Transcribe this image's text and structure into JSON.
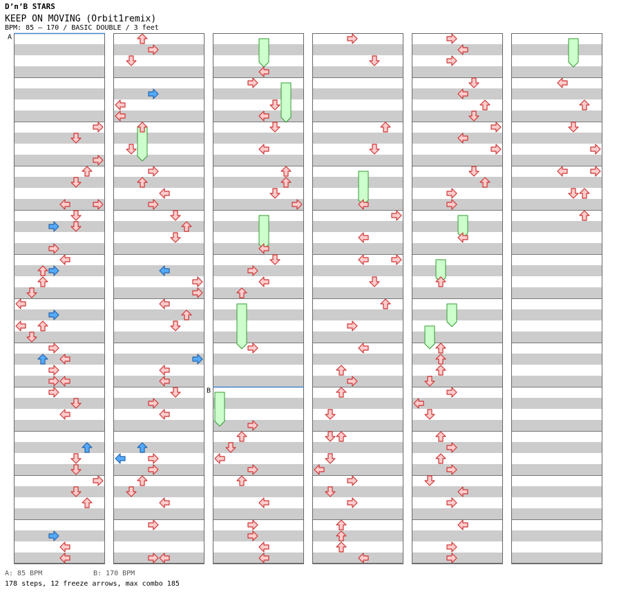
{
  "header": {
    "site": "D’n’B STARS",
    "title": "KEEP ON MOVING (Orbit1remix)",
    "meta": "BPM: 85 – 170 / BASIC DOUBLE / 3 feet"
  },
  "markers": [
    {
      "label": "A",
      "measure": 0
    },
    {
      "label": "B",
      "measure": 32
    }
  ],
  "footer": {
    "bpm_a": "A: 85 BPM",
    "bpm_b": "B: 170 BPM",
    "summary": "178 steps, 12 freeze arrows, max combo 185"
  },
  "colors": {
    "stripe": "#cccccc",
    "marker_line": "#4682c8",
    "arrow_red_fill": "#ffcccc",
    "arrow_red_stroke": "#cc3333",
    "arrow_blue_fill": "#55aaff",
    "arrow_blue_stroke": "#2266aa",
    "freeze_fill": "#ccffcc",
    "freeze_stroke": "#339933"
  },
  "chart_data": {
    "type": "stepchart",
    "columns": 6,
    "measures_per_column": 12,
    "rows_per_measure": 4,
    "lanes": [
      "left-1",
      "down-1",
      "up-1",
      "right-1",
      "left-2",
      "down-2",
      "up-2",
      "right-2"
    ],
    "freezes": [
      {
        "col": 2,
        "lane": 4,
        "start": 0,
        "end": 2
      },
      {
        "col": 5,
        "lane": 5,
        "start": 0,
        "end": 2
      },
      {
        "col": 2,
        "lane": 6,
        "start": 4,
        "end": 7
      },
      {
        "col": 1,
        "lane": 2,
        "start": 8,
        "end": 10.5
      },
      {
        "col": 3,
        "lane": 4,
        "start": 12,
        "end": 14.5
      },
      {
        "col": 2,
        "lane": 4,
        "start": 16,
        "end": 18.5
      },
      {
        "col": 4,
        "lane": 4,
        "start": 16,
        "end": 17.5
      },
      {
        "col": 4,
        "lane": 2,
        "start": 20,
        "end": 21.5
      },
      {
        "col": 4,
        "lane": 3,
        "start": 24,
        "end": 25.5
      },
      {
        "col": 2,
        "lane": 2,
        "start": 24,
        "end": 27.5
      },
      {
        "col": 4,
        "lane": 1,
        "start": 26,
        "end": 27.5
      },
      {
        "col": 2,
        "lane": 0,
        "start": 32,
        "end": 34.5
      }
    ],
    "arrows": [
      {
        "col": 0,
        "lane": 7,
        "row": 8
      },
      {
        "col": 0,
        "lane": 5,
        "row": 9
      },
      {
        "col": 0,
        "lane": 7,
        "row": 11
      },
      {
        "col": 0,
        "lane": 6,
        "row": 12
      },
      {
        "col": 0,
        "lane": 5,
        "row": 13
      },
      {
        "col": 0,
        "lane": 4,
        "row": 15
      },
      {
        "col": 0,
        "lane": 7,
        "row": 15
      },
      {
        "col": 0,
        "lane": 5,
        "row": 16
      },
      {
        "col": 0,
        "lane": 3,
        "row": 17,
        "blue": true
      },
      {
        "col": 0,
        "lane": 5,
        "row": 17
      },
      {
        "col": 0,
        "lane": 3,
        "row": 19
      },
      {
        "col": 0,
        "lane": 4,
        "row": 20
      },
      {
        "col": 0,
        "lane": 2,
        "row": 21
      },
      {
        "col": 0,
        "lane": 3,
        "row": 21,
        "blue": true
      },
      {
        "col": 0,
        "lane": 2,
        "row": 22
      },
      {
        "col": 0,
        "lane": 1,
        "row": 23
      },
      {
        "col": 0,
        "lane": 0,
        "row": 24
      },
      {
        "col": 0,
        "lane": 3,
        "row": 25,
        "blue": true
      },
      {
        "col": 0,
        "lane": 0,
        "row": 26
      },
      {
        "col": 0,
        "lane": 2,
        "row": 26
      },
      {
        "col": 0,
        "lane": 1,
        "row": 27
      },
      {
        "col": 0,
        "lane": 3,
        "row": 28
      },
      {
        "col": 0,
        "lane": 2,
        "row": 29,
        "blue": true
      },
      {
        "col": 0,
        "lane": 4,
        "row": 29
      },
      {
        "col": 0,
        "lane": 3,
        "row": 30
      },
      {
        "col": 0,
        "lane": 3,
        "row": 31
      },
      {
        "col": 0,
        "lane": 4,
        "row": 31
      },
      {
        "col": 0,
        "lane": 3,
        "row": 32
      },
      {
        "col": 0,
        "lane": 5,
        "row": 33
      },
      {
        "col": 0,
        "lane": 4,
        "row": 34
      },
      {
        "col": 0,
        "lane": 6,
        "row": 37,
        "blue": true
      },
      {
        "col": 0,
        "lane": 5,
        "row": 38
      },
      {
        "col": 0,
        "lane": 5,
        "row": 39
      },
      {
        "col": 0,
        "lane": 7,
        "row": 40
      },
      {
        "col": 0,
        "lane": 5,
        "row": 41
      },
      {
        "col": 0,
        "lane": 6,
        "row": 42
      },
      {
        "col": 0,
        "lane": 3,
        "row": 45,
        "blue": true
      },
      {
        "col": 0,
        "lane": 4,
        "row": 46
      },
      {
        "col": 0,
        "lane": 4,
        "row": 47
      },
      {
        "col": 1,
        "lane": 2,
        "row": 0
      },
      {
        "col": 1,
        "lane": 3,
        "row": 1
      },
      {
        "col": 1,
        "lane": 1,
        "row": 2
      },
      {
        "col": 1,
        "lane": 3,
        "row": 5,
        "blue": true
      },
      {
        "col": 1,
        "lane": 0,
        "row": 6
      },
      {
        "col": 1,
        "lane": 0,
        "row": 7
      },
      {
        "col": 1,
        "lane": 2,
        "row": 8
      },
      {
        "col": 1,
        "lane": 1,
        "row": 10
      },
      {
        "col": 1,
        "lane": 3,
        "row": 12
      },
      {
        "col": 1,
        "lane": 2,
        "row": 13
      },
      {
        "col": 1,
        "lane": 4,
        "row": 14
      },
      {
        "col": 1,
        "lane": 3,
        "row": 15
      },
      {
        "col": 1,
        "lane": 5,
        "row": 16
      },
      {
        "col": 1,
        "lane": 6,
        "row": 17
      },
      {
        "col": 1,
        "lane": 5,
        "row": 18
      },
      {
        "col": 1,
        "lane": 4,
        "row": 21,
        "blue": true
      },
      {
        "col": 1,
        "lane": 7,
        "row": 22
      },
      {
        "col": 1,
        "lane": 7,
        "row": 23
      },
      {
        "col": 1,
        "lane": 4,
        "row": 24
      },
      {
        "col": 1,
        "lane": 6,
        "row": 25
      },
      {
        "col": 1,
        "lane": 5,
        "row": 26
      },
      {
        "col": 1,
        "lane": 7,
        "row": 29,
        "blue": true
      },
      {
        "col": 1,
        "lane": 4,
        "row": 30
      },
      {
        "col": 1,
        "lane": 4,
        "row": 31
      },
      {
        "col": 1,
        "lane": 5,
        "row": 32
      },
      {
        "col": 1,
        "lane": 3,
        "row": 33
      },
      {
        "col": 1,
        "lane": 4,
        "row": 34
      },
      {
        "col": 1,
        "lane": 2,
        "row": 37,
        "blue": true
      },
      {
        "col": 1,
        "lane": 0,
        "row": 38,
        "blue": true
      },
      {
        "col": 1,
        "lane": 3,
        "row": 38
      },
      {
        "col": 1,
        "lane": 3,
        "row": 39
      },
      {
        "col": 1,
        "lane": 2,
        "row": 40
      },
      {
        "col": 1,
        "lane": 1,
        "row": 41
      },
      {
        "col": 1,
        "lane": 4,
        "row": 42
      },
      {
        "col": 1,
        "lane": 3,
        "row": 44
      },
      {
        "col": 1,
        "lane": 3,
        "row": 47
      },
      {
        "col": 1,
        "lane": 4,
        "row": 47
      },
      {
        "col": 2,
        "lane": 4,
        "row": 3
      },
      {
        "col": 2,
        "lane": 3,
        "row": 4
      },
      {
        "col": 2,
        "lane": 5,
        "row": 6
      },
      {
        "col": 2,
        "lane": 4,
        "row": 7
      },
      {
        "col": 2,
        "lane": 5,
        "row": 8
      },
      {
        "col": 2,
        "lane": 4,
        "row": 10
      },
      {
        "col": 2,
        "lane": 6,
        "row": 12
      },
      {
        "col": 2,
        "lane": 6,
        "row": 13
      },
      {
        "col": 2,
        "lane": 5,
        "row": 14
      },
      {
        "col": 2,
        "lane": 7,
        "row": 15
      },
      {
        "col": 2,
        "lane": 4,
        "row": 19
      },
      {
        "col": 2,
        "lane": 5,
        "row": 20
      },
      {
        "col": 2,
        "lane": 3,
        "row": 21
      },
      {
        "col": 2,
        "lane": 4,
        "row": 22
      },
      {
        "col": 2,
        "lane": 2,
        "row": 23
      },
      {
        "col": 2,
        "lane": 3,
        "row": 28
      },
      {
        "col": 2,
        "lane": 3,
        "row": 35
      },
      {
        "col": 2,
        "lane": 2,
        "row": 36
      },
      {
        "col": 2,
        "lane": 1,
        "row": 37
      },
      {
        "col": 2,
        "lane": 0,
        "row": 38
      },
      {
        "col": 2,
        "lane": 3,
        "row": 39
      },
      {
        "col": 2,
        "lane": 2,
        "row": 40
      },
      {
        "col": 2,
        "lane": 4,
        "row": 42
      },
      {
        "col": 2,
        "lane": 3,
        "row": 44
      },
      {
        "col": 2,
        "lane": 3,
        "row": 45
      },
      {
        "col": 2,
        "lane": 4,
        "row": 46
      },
      {
        "col": 2,
        "lane": 4,
        "row": 47
      },
      {
        "col": 3,
        "lane": 3,
        "row": 0
      },
      {
        "col": 3,
        "lane": 5,
        "row": 2
      },
      {
        "col": 3,
        "lane": 6,
        "row": 8
      },
      {
        "col": 3,
        "lane": 5,
        "row": 10
      },
      {
        "col": 3,
        "lane": 4,
        "row": 15
      },
      {
        "col": 3,
        "lane": 7,
        "row": 16
      },
      {
        "col": 3,
        "lane": 4,
        "row": 18
      },
      {
        "col": 3,
        "lane": 4,
        "row": 20
      },
      {
        "col": 3,
        "lane": 7,
        "row": 20
      },
      {
        "col": 3,
        "lane": 5,
        "row": 22
      },
      {
        "col": 3,
        "lane": 6,
        "row": 24
      },
      {
        "col": 3,
        "lane": 3,
        "row": 26
      },
      {
        "col": 3,
        "lane": 4,
        "row": 28
      },
      {
        "col": 3,
        "lane": 2,
        "row": 30
      },
      {
        "col": 3,
        "lane": 3,
        "row": 31
      },
      {
        "col": 3,
        "lane": 2,
        "row": 32
      },
      {
        "col": 3,
        "lane": 1,
        "row": 34
      },
      {
        "col": 3,
        "lane": 1,
        "row": 36
      },
      {
        "col": 3,
        "lane": 2,
        "row": 36
      },
      {
        "col": 3,
        "lane": 1,
        "row": 38
      },
      {
        "col": 3,
        "lane": 0,
        "row": 39
      },
      {
        "col": 3,
        "lane": 3,
        "row": 40
      },
      {
        "col": 3,
        "lane": 1,
        "row": 41
      },
      {
        "col": 3,
        "lane": 3,
        "row": 42
      },
      {
        "col": 3,
        "lane": 2,
        "row": 44
      },
      {
        "col": 3,
        "lane": 2,
        "row": 45
      },
      {
        "col": 3,
        "lane": 2,
        "row": 46
      },
      {
        "col": 3,
        "lane": 4,
        "row": 47
      },
      {
        "col": 4,
        "lane": 3,
        "row": 0
      },
      {
        "col": 4,
        "lane": 4,
        "row": 1
      },
      {
        "col": 4,
        "lane": 3,
        "row": 2
      },
      {
        "col": 4,
        "lane": 5,
        "row": 4
      },
      {
        "col": 4,
        "lane": 4,
        "row": 5
      },
      {
        "col": 4,
        "lane": 6,
        "row": 6
      },
      {
        "col": 4,
        "lane": 5,
        "row": 7
      },
      {
        "col": 4,
        "lane": 7,
        "row": 8
      },
      {
        "col": 4,
        "lane": 4,
        "row": 9
      },
      {
        "col": 4,
        "lane": 7,
        "row": 10
      },
      {
        "col": 4,
        "lane": 5,
        "row": 12
      },
      {
        "col": 4,
        "lane": 6,
        "row": 13
      },
      {
        "col": 4,
        "lane": 3,
        "row": 14
      },
      {
        "col": 4,
        "lane": 3,
        "row": 15
      },
      {
        "col": 4,
        "lane": 4,
        "row": 18
      },
      {
        "col": 4,
        "lane": 2,
        "row": 22
      },
      {
        "col": 4,
        "lane": 2,
        "row": 28
      },
      {
        "col": 4,
        "lane": 2,
        "row": 29
      },
      {
        "col": 4,
        "lane": 2,
        "row": 30
      },
      {
        "col": 4,
        "lane": 1,
        "row": 31
      },
      {
        "col": 4,
        "lane": 3,
        "row": 32
      },
      {
        "col": 4,
        "lane": 0,
        "row": 33
      },
      {
        "col": 4,
        "lane": 1,
        "row": 34
      },
      {
        "col": 4,
        "lane": 2,
        "row": 36
      },
      {
        "col": 4,
        "lane": 3,
        "row": 37
      },
      {
        "col": 4,
        "lane": 2,
        "row": 38
      },
      {
        "col": 4,
        "lane": 3,
        "row": 39
      },
      {
        "col": 4,
        "lane": 1,
        "row": 40
      },
      {
        "col": 4,
        "lane": 4,
        "row": 41
      },
      {
        "col": 4,
        "lane": 3,
        "row": 42
      },
      {
        "col": 4,
        "lane": 4,
        "row": 44
      },
      {
        "col": 4,
        "lane": 3,
        "row": 46
      },
      {
        "col": 4,
        "lane": 3,
        "row": 47
      },
      {
        "col": 5,
        "lane": 4,
        "row": 4
      },
      {
        "col": 5,
        "lane": 6,
        "row": 6
      },
      {
        "col": 5,
        "lane": 5,
        "row": 8
      },
      {
        "col": 5,
        "lane": 7,
        "row": 10
      },
      {
        "col": 5,
        "lane": 4,
        "row": 12
      },
      {
        "col": 5,
        "lane": 7,
        "row": 12
      },
      {
        "col": 5,
        "lane": 5,
        "row": 14
      },
      {
        "col": 5,
        "lane": 6,
        "row": 14
      },
      {
        "col": 5,
        "lane": 6,
        "row": 16
      }
    ]
  }
}
